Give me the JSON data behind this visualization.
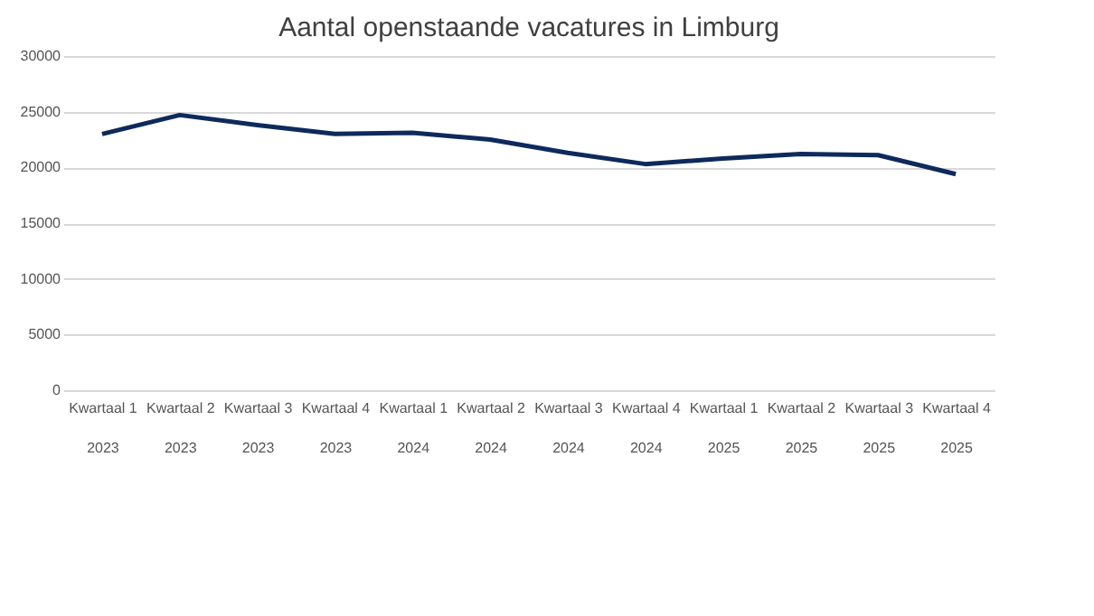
{
  "chart_data": {
    "type": "line",
    "title": "Aantal openstaande vacatures in Limburg",
    "categories": [
      "Kwartaal 1\n2023",
      "Kwartaal 2\n2023",
      "Kwartaal 3\n2023",
      "Kwartaal 4\n2023",
      "Kwartaal 1\n2024",
      "Kwartaal 2\n2024",
      "Kwartaal 3\n2024",
      "Kwartaal 4\n2024",
      "Kwartaal 1\n2025",
      "Kwartaal 2\n2025",
      "Kwartaal 3\n2025",
      "Kwartaal 4\n2025"
    ],
    "series": [
      {
        "color": "#0e2a5c",
        "values": [
          23000,
          24700,
          23800,
          23000,
          23100,
          22500,
          21300,
          20300,
          20800,
          21200,
          21100,
          19400
        ]
      }
    ],
    "ylim": [
      0,
      30000
    ],
    "yticks": [
      0,
      5000,
      10000,
      15000,
      20000,
      25000,
      30000
    ],
    "grid": "y",
    "marker": "none",
    "line_style": "solid"
  }
}
